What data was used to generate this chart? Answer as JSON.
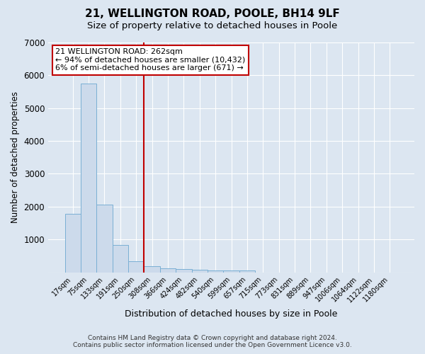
{
  "title": "21, WELLINGTON ROAD, POOLE, BH14 9LF",
  "subtitle": "Size of property relative to detached houses in Poole",
  "xlabel": "Distribution of detached houses by size in Poole",
  "ylabel": "Number of detached properties",
  "bar_values": [
    1780,
    5750,
    2060,
    830,
    330,
    190,
    110,
    95,
    85,
    60,
    55,
    50,
    0,
    0,
    0,
    0,
    0,
    0,
    0,
    0,
    0
  ],
  "bar_labels": [
    "17sqm",
    "75sqm",
    "133sqm",
    "191sqm",
    "250sqm",
    "308sqm",
    "366sqm",
    "424sqm",
    "482sqm",
    "540sqm",
    "599sqm",
    "657sqm",
    "715sqm",
    "773sqm",
    "831sqm",
    "889sqm",
    "947sqm",
    "1006sqm",
    "1064sqm",
    "1122sqm",
    "1180sqm"
  ],
  "bar_color": "#ccdaeb",
  "bar_edge_color": "#7aafd4",
  "background_color": "#dce6f1",
  "vline_x": 4.5,
  "vline_color": "#c00000",
  "annotation_text": "21 WELLINGTON ROAD: 262sqm\n← 94% of detached houses are smaller (10,432)\n6% of semi-detached houses are larger (671) →",
  "annotation_box_color": "#ffffff",
  "annotation_box_edge": "#c00000",
  "ylim": [
    0,
    7000
  ],
  "yticks": [
    0,
    1000,
    2000,
    3000,
    4000,
    5000,
    6000,
    7000
  ],
  "footer_line1": "Contains HM Land Registry data © Crown copyright and database right 2024.",
  "footer_line2": "Contains public sector information licensed under the Open Government Licence v3.0.",
  "title_fontsize": 11,
  "subtitle_fontsize": 9.5,
  "xlabel_fontsize": 9,
  "ylabel_fontsize": 8.5
}
